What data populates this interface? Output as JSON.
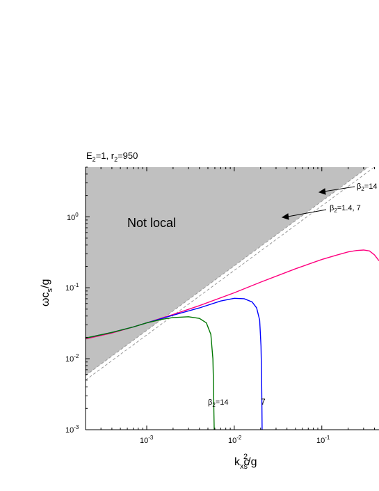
{
  "chart_data": {
    "type": "line",
    "title": "",
    "header_annotation": {
      "prefix": "E",
      "sub": "2",
      "rest": "=1, r",
      "sub2": "2",
      "tail": "=950"
    },
    "xlabel": {
      "main": "k",
      "sub": "x",
      "mid": "c",
      "sub2": "s",
      "sup": "2",
      "tail": "/g"
    },
    "ylabel": {
      "main": "ωc",
      "sub": "s",
      "tail": "/g"
    },
    "x_scale": "log",
    "y_scale": "log",
    "xlim": [
      0.0002,
      0.45
    ],
    "ylim": [
      0.001,
      5
    ],
    "xtick_labels": [
      {
        "value": 0.001,
        "base": "10",
        "exp": "-3"
      },
      {
        "value": 0.01,
        "base": "10",
        "exp": "-2"
      },
      {
        "value": 0.1,
        "base": "10",
        "exp": "-1"
      }
    ],
    "ytick_labels": [
      {
        "value": 1,
        "base": "10",
        "exp": "0"
      },
      {
        "value": 0.1,
        "base": "10",
        "exp": "-1"
      },
      {
        "value": 0.01,
        "base": "10",
        "exp": "-2"
      },
      {
        "value": 0.001,
        "base": "10",
        "exp": "-3"
      }
    ],
    "region_label": "Not local",
    "region_color": "#c0c0c0",
    "dashed_lines": [
      {
        "x": [
          0.0002,
          0.45
        ],
        "y": [
          0.0058,
          6.5
        ],
        "color": "#999999"
      },
      {
        "x": [
          0.0002,
          0.45
        ],
        "y": [
          0.005,
          5.6
        ],
        "color": "#999999"
      }
    ],
    "series": [
      {
        "color": "#ff007f",
        "x": [
          0.0002,
          0.0004,
          0.0007,
          0.001,
          0.002,
          0.004,
          0.01,
          0.02,
          0.05,
          0.1,
          0.15,
          0.2,
          0.25,
          0.3,
          0.35,
          0.4,
          0.45
        ],
        "y": [
          0.019,
          0.023,
          0.028,
          0.032,
          0.042,
          0.056,
          0.085,
          0.12,
          0.185,
          0.25,
          0.29,
          0.32,
          0.335,
          0.34,
          0.33,
          0.29,
          0.24
        ]
      },
      {
        "color": "#0000ff",
        "x": [
          0.0002,
          0.0004,
          0.0007,
          0.001,
          0.002,
          0.004,
          0.007,
          0.01,
          0.013,
          0.016,
          0.018,
          0.0195,
          0.0202,
          0.0205,
          0.0207,
          0.0208
        ],
        "y": [
          0.0195,
          0.0235,
          0.028,
          0.032,
          0.041,
          0.052,
          0.065,
          0.071,
          0.07,
          0.063,
          0.052,
          0.035,
          0.015,
          0.006,
          0.002,
          0.001
        ]
      },
      {
        "color": "#007700",
        "x": [
          0.0002,
          0.0004,
          0.0007,
          0.001,
          0.0015,
          0.002,
          0.003,
          0.004,
          0.0048,
          0.0054,
          0.0057,
          0.0058,
          0.00585,
          0.0059
        ],
        "y": [
          0.0195,
          0.0235,
          0.028,
          0.032,
          0.036,
          0.038,
          0.039,
          0.037,
          0.032,
          0.022,
          0.01,
          0.004,
          0.0018,
          0.001
        ]
      }
    ],
    "annotations": [
      {
        "greek": "β",
        "sub": "2",
        "text": "=14",
        "color": "#000"
      },
      {
        "greek": "β",
        "sub": "2",
        "text": "=1.4, 7",
        "color": "#000"
      },
      {
        "greek": "β",
        "sub": "2",
        "text": "=14",
        "color": "#000"
      },
      {
        "text": "7",
        "color": "#000"
      }
    ]
  }
}
